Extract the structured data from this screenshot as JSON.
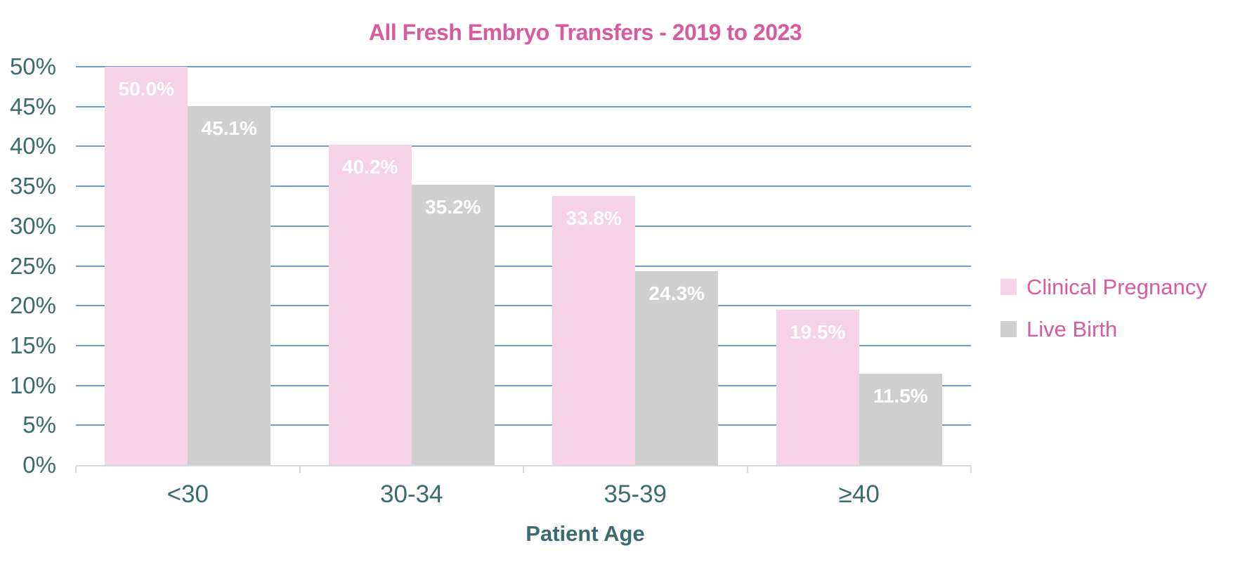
{
  "chart_data": {
    "type": "bar",
    "title": "All Fresh Embryo Transfers - 2019 to 2023",
    "xlabel": "Patient Age",
    "ylabel": "",
    "categories": [
      "<30",
      "30-34",
      "35-39",
      "≥40"
    ],
    "series": [
      {
        "name": "Clinical Pregnancy",
        "color": "#f6d2e7",
        "values": [
          50.0,
          40.2,
          33.8,
          19.5
        ],
        "data_labels": [
          "50.0%",
          "40.2%",
          "33.8%",
          "19.5%"
        ]
      },
      {
        "name": "Live Birth",
        "color": "#d0cfcf",
        "values": [
          45.1,
          35.2,
          24.3,
          11.5
        ],
        "data_labels": [
          "45.1%",
          "35.2%",
          "24.3%",
          "11.5%"
        ]
      }
    ],
    "y_axis": {
      "min": 0,
      "max": 50,
      "ticks": [
        {
          "value": 0,
          "label": "0%"
        },
        {
          "value": 5,
          "label": "5%"
        },
        {
          "value": 10,
          "label": "10%"
        },
        {
          "value": 15,
          "label": "15%"
        },
        {
          "value": 20,
          "label": "20%"
        },
        {
          "value": 25,
          "label": "25%"
        },
        {
          "value": 30,
          "label": "30%"
        },
        {
          "value": 35,
          "label": "35%"
        },
        {
          "value": 40,
          "label": "40%"
        },
        {
          "value": 45,
          "label": "45%"
        },
        {
          "value": 50,
          "label": "50%"
        }
      ]
    },
    "grid": true,
    "legend_position": "right"
  },
  "colors": {
    "background": "#ffffff",
    "title_text": "#d75b9e",
    "legend_text": "#d75b9e",
    "axis_text": "#3a6b6e",
    "gridline": "#6f9dc9",
    "axis_line": "#d9d9d9",
    "data_label_text": "#ffffff"
  }
}
